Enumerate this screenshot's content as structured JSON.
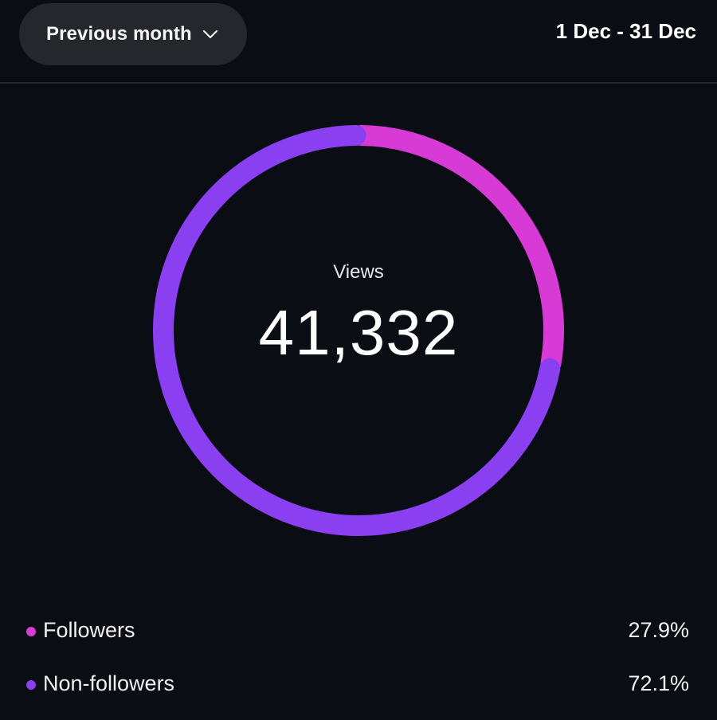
{
  "header": {
    "period_label": "Previous month",
    "date_range": "1 Dec - 31 Dec"
  },
  "summary": {
    "metric_label": "Views",
    "metric_value": "41,332"
  },
  "colors": {
    "background": "#0b0d14",
    "followers": "#d83ad6",
    "non_followers": "#8a3ff0"
  },
  "legend": [
    {
      "label": "Followers",
      "value": "27.9%"
    },
    {
      "label": "Non-followers",
      "value": "72.1%"
    }
  ],
  "chart_data": {
    "type": "pie",
    "categories": [
      "Followers",
      "Non-followers"
    ],
    "values": [
      27.9,
      72.1
    ]
  }
}
